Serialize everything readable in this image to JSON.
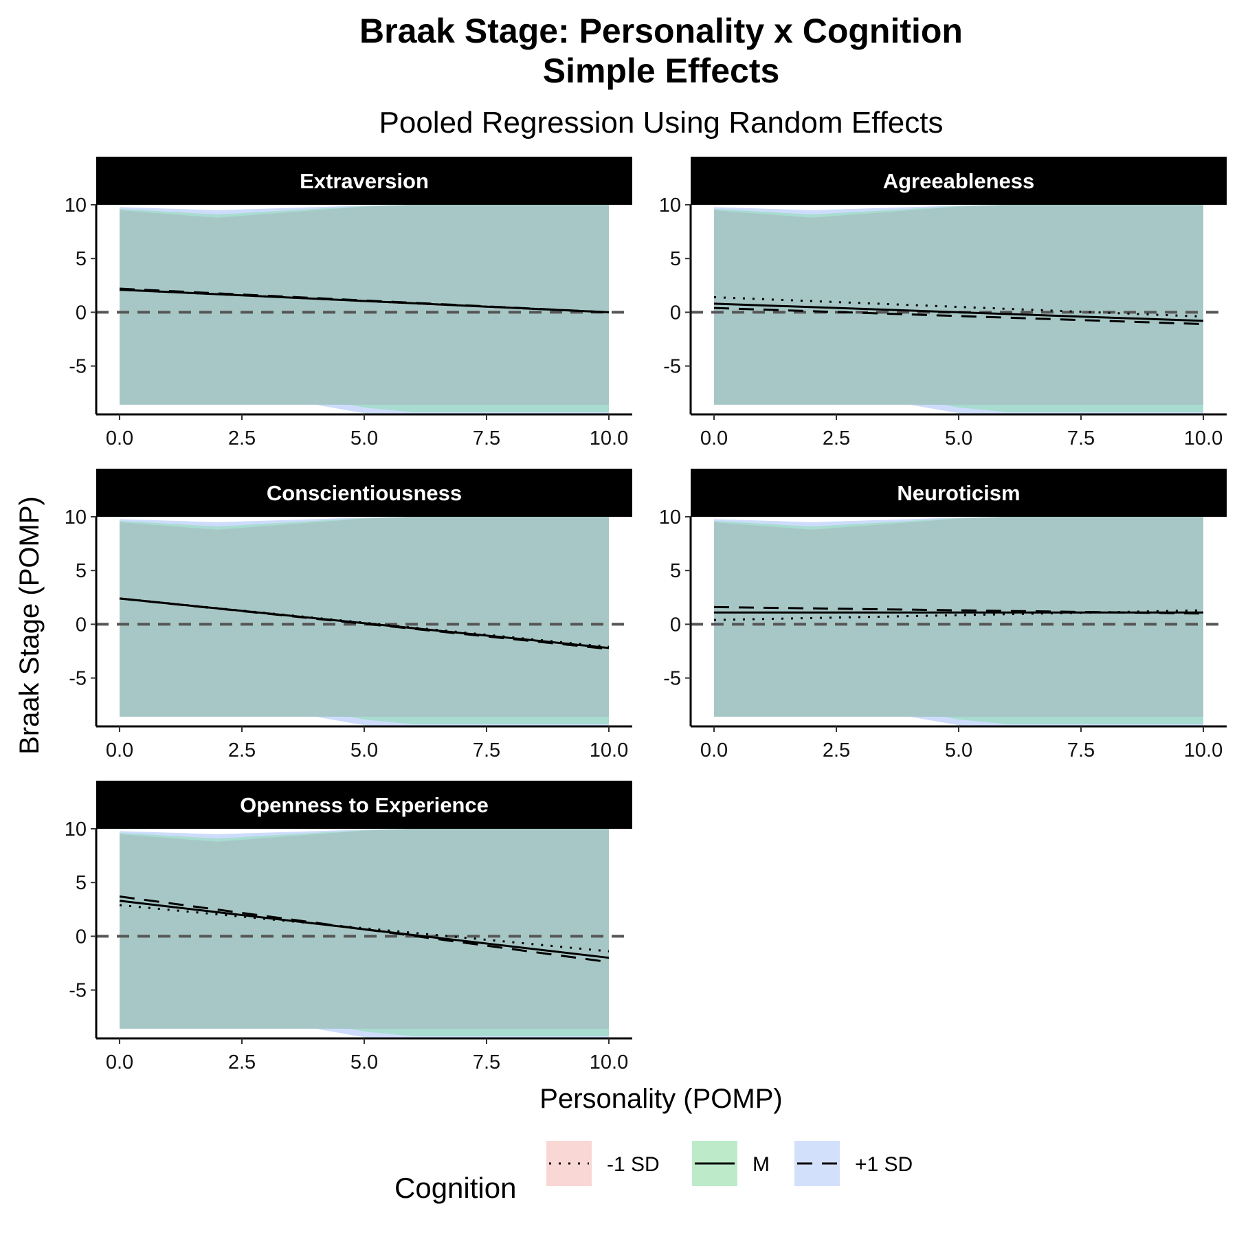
{
  "chart_data": {
    "type": "line",
    "title": "Braak Stage: Personality x Cognition\nSimple Effects",
    "subtitle": "Pooled Regression Using Random Effects",
    "xlabel": "Personality (POMP)",
    "ylabel": "Braak Stage (POMP)",
    "xlim": [
      0,
      10
    ],
    "ylim": [
      -9.5,
      10
    ],
    "x_ticks": [
      "0.0",
      "2.5",
      "5.0",
      "7.5",
      "10.0"
    ],
    "y_ticks": [
      "10",
      "5",
      "0",
      "-5"
    ],
    "y_tick_values": [
      10,
      5,
      0,
      -5
    ],
    "reference_line": 0,
    "grid": false,
    "legend": {
      "title": "Cognition",
      "position": "bottom",
      "entries": [
        {
          "label": "-1 SD",
          "linetype": "dotted",
          "fill": "#f8d7d4"
        },
        {
          "label": "M",
          "linetype": "solid",
          "fill": "#bdebc9"
        },
        {
          "label": "+1 SD",
          "linetype": "dashed",
          "fill": "#d3e0fb"
        }
      ]
    },
    "colors": {
      "band_overlap": "#a7c7c6",
      "band_m": "#a8dcd1",
      "band_plus": "#cddcfb",
      "strip_bg": "#000000",
      "ref_line": "#555555"
    },
    "panels": [
      {
        "name": "Extraversion",
        "series": [
          {
            "name": "-1 SD",
            "x": [
              0,
              10
            ],
            "y": [
              2.1,
              0.0
            ]
          },
          {
            "name": "M",
            "x": [
              0,
              10
            ],
            "y": [
              2.1,
              0.0
            ]
          },
          {
            "name": "+1 SD",
            "x": [
              0,
              10
            ],
            "y": [
              2.2,
              0.0
            ]
          }
        ]
      },
      {
        "name": "Agreeableness",
        "series": [
          {
            "name": "-1 SD",
            "x": [
              0,
              10
            ],
            "y": [
              1.4,
              -0.4
            ]
          },
          {
            "name": "M",
            "x": [
              0,
              10
            ],
            "y": [
              0.8,
              -0.8
            ]
          },
          {
            "name": "+1 SD",
            "x": [
              0,
              10
            ],
            "y": [
              0.4,
              -1.1
            ]
          }
        ]
      },
      {
        "name": "Conscientiousness",
        "series": [
          {
            "name": "-1 SD",
            "x": [
              0,
              10
            ],
            "y": [
              2.4,
              -2.1
            ]
          },
          {
            "name": "M",
            "x": [
              0,
              10
            ],
            "y": [
              2.4,
              -2.2
            ]
          },
          {
            "name": "+1 SD",
            "x": [
              0,
              10
            ],
            "y": [
              2.4,
              -2.3
            ]
          }
        ]
      },
      {
        "name": "Neuroticism",
        "series": [
          {
            "name": "-1 SD",
            "x": [
              0,
              10
            ],
            "y": [
              0.4,
              1.3
            ]
          },
          {
            "name": "M",
            "x": [
              0,
              10
            ],
            "y": [
              1.1,
              1.1
            ]
          },
          {
            "name": "+1 SD",
            "x": [
              0,
              10
            ],
            "y": [
              1.6,
              1.0
            ]
          }
        ]
      },
      {
        "name": "Openness to Experience",
        "series": [
          {
            "name": "-1 SD",
            "x": [
              0,
              10
            ],
            "y": [
              2.9,
              -1.4
            ]
          },
          {
            "name": "M",
            "x": [
              0,
              10
            ],
            "y": [
              3.3,
              -2.0
            ]
          },
          {
            "name": "+1 SD",
            "x": [
              0,
              10
            ],
            "y": [
              3.7,
              -2.4
            ]
          }
        ]
      }
    ]
  }
}
